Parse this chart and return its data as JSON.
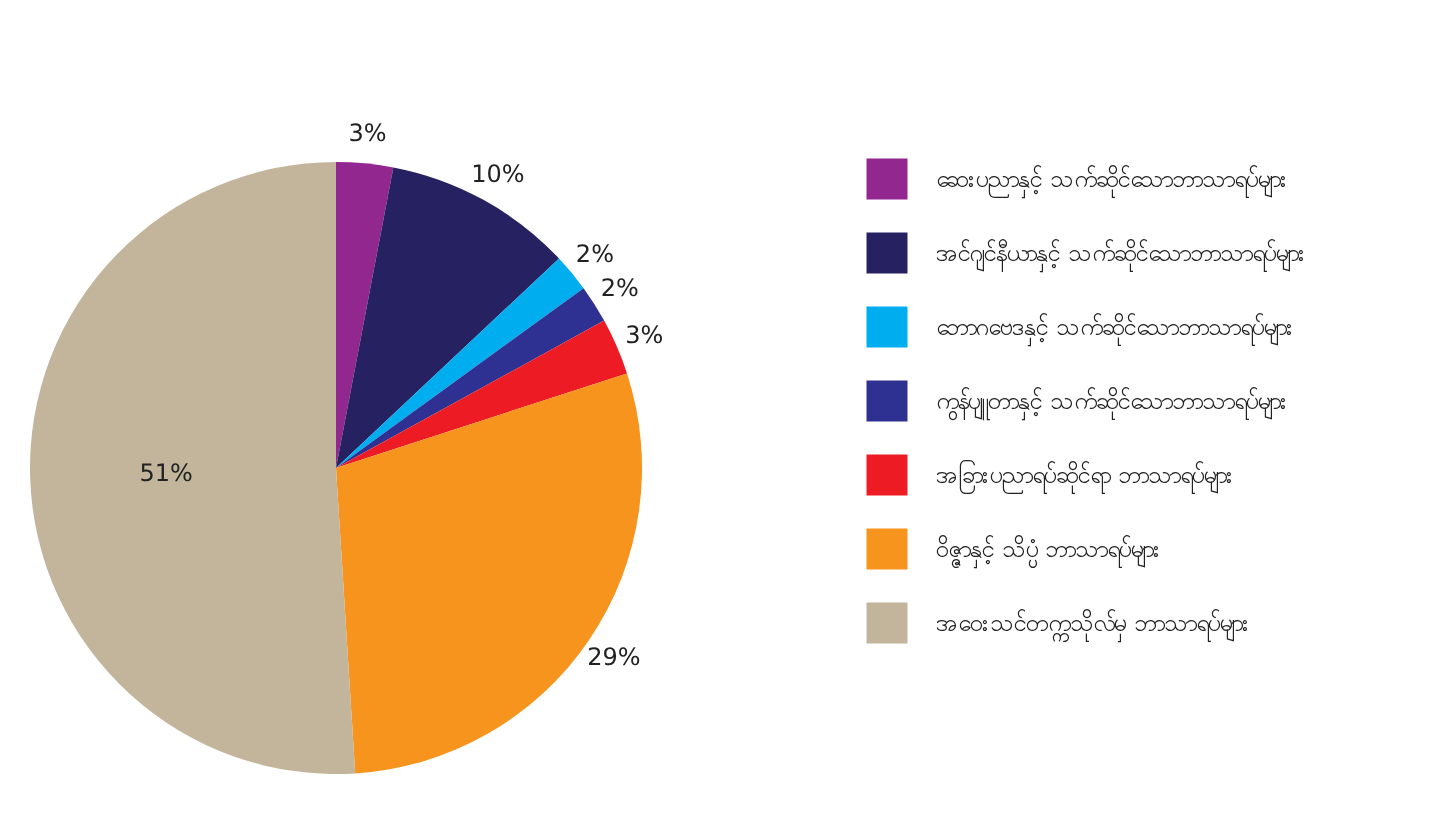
{
  "chart_data": {
    "type": "pie",
    "categories": [
      "ဆေးပညာနှင့် သက်ဆိုင်သောဘာသာရပ်များ",
      "အင်ဂျင်နီယာနှင့် သက်ဆိုင်သောဘာသာရပ်များ",
      "ဘောဂဗေဒနှင့် သက်ဆိုင်သောဘာသာရပ်များ",
      "ကွန်ပျူတာနှင့် သက်ဆိုင်သောဘာသာရပ်များ",
      "အခြားပညာရပ်ဆိုင်ရာ ဘာသာရပ်များ",
      "ဝိဇ္ဇာနှင့် သိပ္ပံ ဘာသာရပ်များ",
      "အဝေးသင်တက္ကသိုလ်မှ ဘာသာရပ်များ"
    ],
    "values": [
      3,
      10,
      2,
      2,
      3,
      29,
      51
    ],
    "colors": [
      "#92278f",
      "#262262",
      "#00aeef",
      "#2e3192",
      "#ed1c24",
      "#f7941d",
      "#c2b59b"
    ],
    "value_labels": [
      "3%",
      "10%",
      "2%",
      "2%",
      "3%",
      "29%",
      "51%"
    ],
    "legend": "right"
  }
}
